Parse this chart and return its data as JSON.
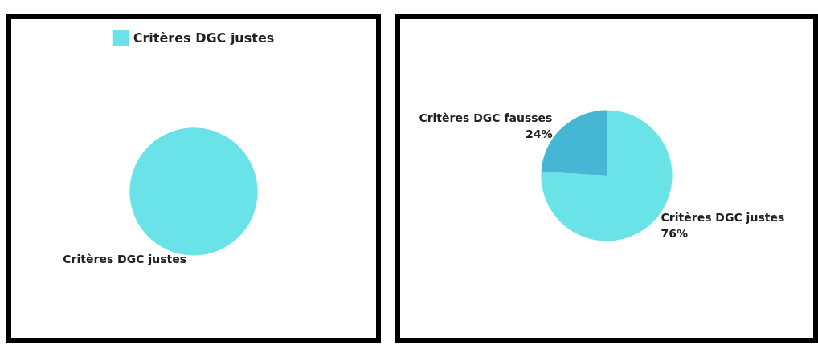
{
  "chart_data": [
    {
      "type": "pie",
      "categories": [
        "Critères DGC justes"
      ],
      "values": [
        100
      ],
      "colors": [
        "#6ae3e8"
      ],
      "legend": "top"
    },
    {
      "type": "pie",
      "categories": [
        "Critères DGC justes",
        "Critères DGC fausses"
      ],
      "values": [
        76,
        24
      ],
      "colors": [
        "#6ae3e8",
        "#45b6d3"
      ],
      "value_labels": [
        "76%",
        "24%"
      ]
    }
  ]
}
